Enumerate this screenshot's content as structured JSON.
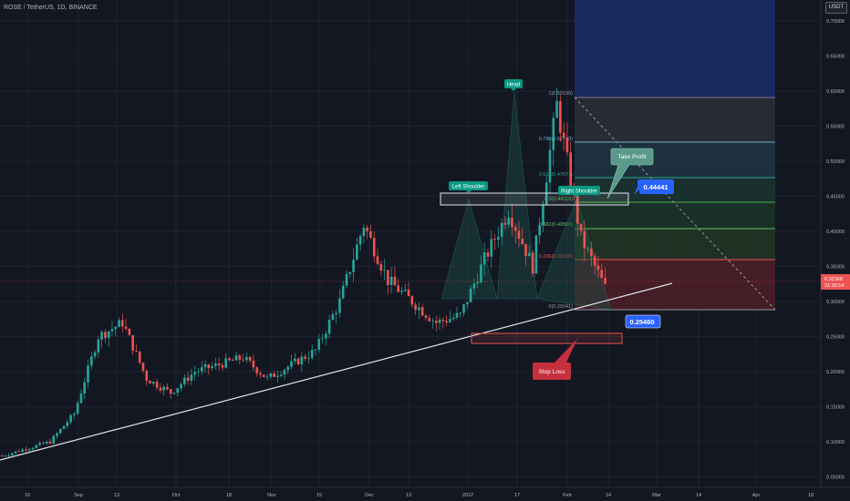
{
  "header": {
    "symbol": "ROSE / TetherUS, 1D, BINANCE",
    "currency_button": "USDT"
  },
  "price_scale": {
    "ticks": [
      "0.70000",
      "0.65000",
      "0.60000",
      "0.55000",
      "0.50000",
      "0.45000",
      "0.40000",
      "0.35000",
      "0.30000",
      "0.25000",
      "0.20000",
      "0.15000",
      "0.10000",
      "0.05000"
    ],
    "current_price": "0.32368",
    "countdown": "21:30:14"
  },
  "time_axis": {
    "labels": [
      "16",
      "Sep",
      "13",
      "Oct",
      "18",
      "Nov",
      "15",
      "Dec",
      "13",
      "2022",
      "17",
      "Feb",
      "14",
      "Mar",
      "14",
      "Apr",
      "18"
    ]
  },
  "annotations": {
    "head": "Head",
    "left_shoulder": "Left Shoulder",
    "right_shoulder": "Right Shoulder",
    "take_profit": "Take Profit",
    "stop_loss": "Stop Loss",
    "target_price": "0.44441",
    "stop_price": "0.25460"
  },
  "fib_levels": [
    "1(0.59196)",
    "0.786(0.52743)",
    "0.618(0.47677)",
    "0.5(0.44119)",
    "0.382(0.40560)",
    "0.236(0.36158)",
    "0(0.29041)"
  ],
  "colors": {
    "up": "#26a69a",
    "down": "#ef5350",
    "background": "#131722",
    "grid": "#1f2330",
    "accent": "#2962ff"
  },
  "chart_data": {
    "type": "candlestick",
    "title": "ROSE / TetherUS, 1D, BINANCE",
    "ylim": [
      0.03,
      0.73
    ],
    "y_ticks": [
      0.7,
      0.65,
      0.6,
      0.55,
      0.5,
      0.45,
      0.4,
      0.35,
      0.3,
      0.25,
      0.2,
      0.15,
      0.1,
      0.05
    ],
    "x_tick_labels": [
      "16",
      "Sep",
      "13",
      "Oct",
      "18",
      "Nov",
      "15",
      "Dec",
      "13",
      "2022",
      "17",
      "Feb",
      "14",
      "Mar",
      "14",
      "Apr",
      "18"
    ],
    "price_path": [
      [
        "2021-08-09",
        0.08
      ],
      [
        "2021-08-16",
        0.09
      ],
      [
        "2021-08-23",
        0.1
      ],
      [
        "2021-08-30",
        0.14
      ],
      [
        "2021-09-06",
        0.25
      ],
      [
        "2021-09-13",
        0.27
      ],
      [
        "2021-09-20",
        0.19
      ],
      [
        "2021-09-27",
        0.17
      ],
      [
        "2021-10-04",
        0.2
      ],
      [
        "2021-10-11",
        0.21
      ],
      [
        "2021-10-18",
        0.22
      ],
      [
        "2021-10-25",
        0.19
      ],
      [
        "2021-11-01",
        0.21
      ],
      [
        "2021-11-08",
        0.23
      ],
      [
        "2021-11-15",
        0.3
      ],
      [
        "2021-11-22",
        0.41
      ],
      [
        "2021-11-29",
        0.33
      ],
      [
        "2021-12-06",
        0.3
      ],
      [
        "2021-12-13",
        0.27
      ],
      [
        "2021-12-20",
        0.28
      ],
      [
        "2021-12-27",
        0.36
      ],
      [
        "2022-01-03",
        0.43
      ],
      [
        "2022-01-10",
        0.35
      ],
      [
        "2022-01-17",
        0.58
      ],
      [
        "2022-01-24",
        0.39
      ],
      [
        "2022-01-31",
        0.32
      ]
    ],
    "current_price": 0.32368,
    "fibonacci": [
      {
        "ratio": 1,
        "price": 0.59196
      },
      {
        "ratio": 0.786,
        "price": 0.52743
      },
      {
        "ratio": 0.618,
        "price": 0.47677
      },
      {
        "ratio": 0.5,
        "price": 0.44119
      },
      {
        "ratio": 0.382,
        "price": 0.4056
      },
      {
        "ratio": 0.236,
        "price": 0.36158
      },
      {
        "ratio": 0,
        "price": 0.29041
      }
    ],
    "target": 0.44441,
    "stop": 0.2546
  }
}
